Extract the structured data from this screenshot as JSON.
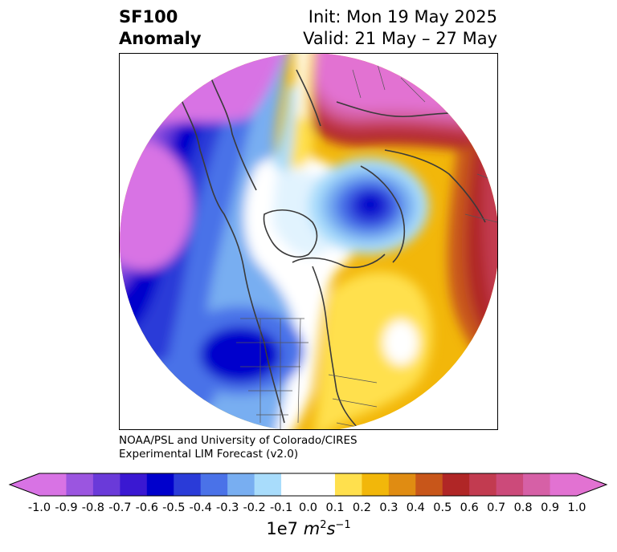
{
  "title": {
    "variable": "SF100",
    "kind": "Anomaly",
    "init": "Init: Mon 19 May 2025",
    "valid": "Valid: 21 May – 27 May"
  },
  "credit": {
    "line1": "NOAA/PSL and University of Colorado/CIRES",
    "line2": "Experimental LIM Forecast (v2.0)"
  },
  "colorbar": {
    "levels": [
      "-1.0",
      "-0.9",
      "-0.8",
      "-0.7",
      "-0.6",
      "-0.5",
      "-0.4",
      "-0.3",
      "-0.2",
      "-0.1",
      "0.0",
      "0.1",
      "0.2",
      "0.3",
      "0.4",
      "0.5",
      "0.6",
      "0.7",
      "0.8",
      "0.9",
      "1.0"
    ],
    "colors": [
      "#d873e4",
      "#9b55e0",
      "#6a3ad9",
      "#3a18d2",
      "#0000cc",
      "#2a3bd8",
      "#4a72e8",
      "#78aef1",
      "#a8dcfb",
      "#ffffff",
      "#ffffff",
      "#ffe04d",
      "#f2b70a",
      "#e08c12",
      "#c8561a",
      "#b02626",
      "#c23b50",
      "#cc4a7a",
      "#d660a6",
      "#e272d2"
    ],
    "units": "1e7 m²s⁻¹"
  }
}
